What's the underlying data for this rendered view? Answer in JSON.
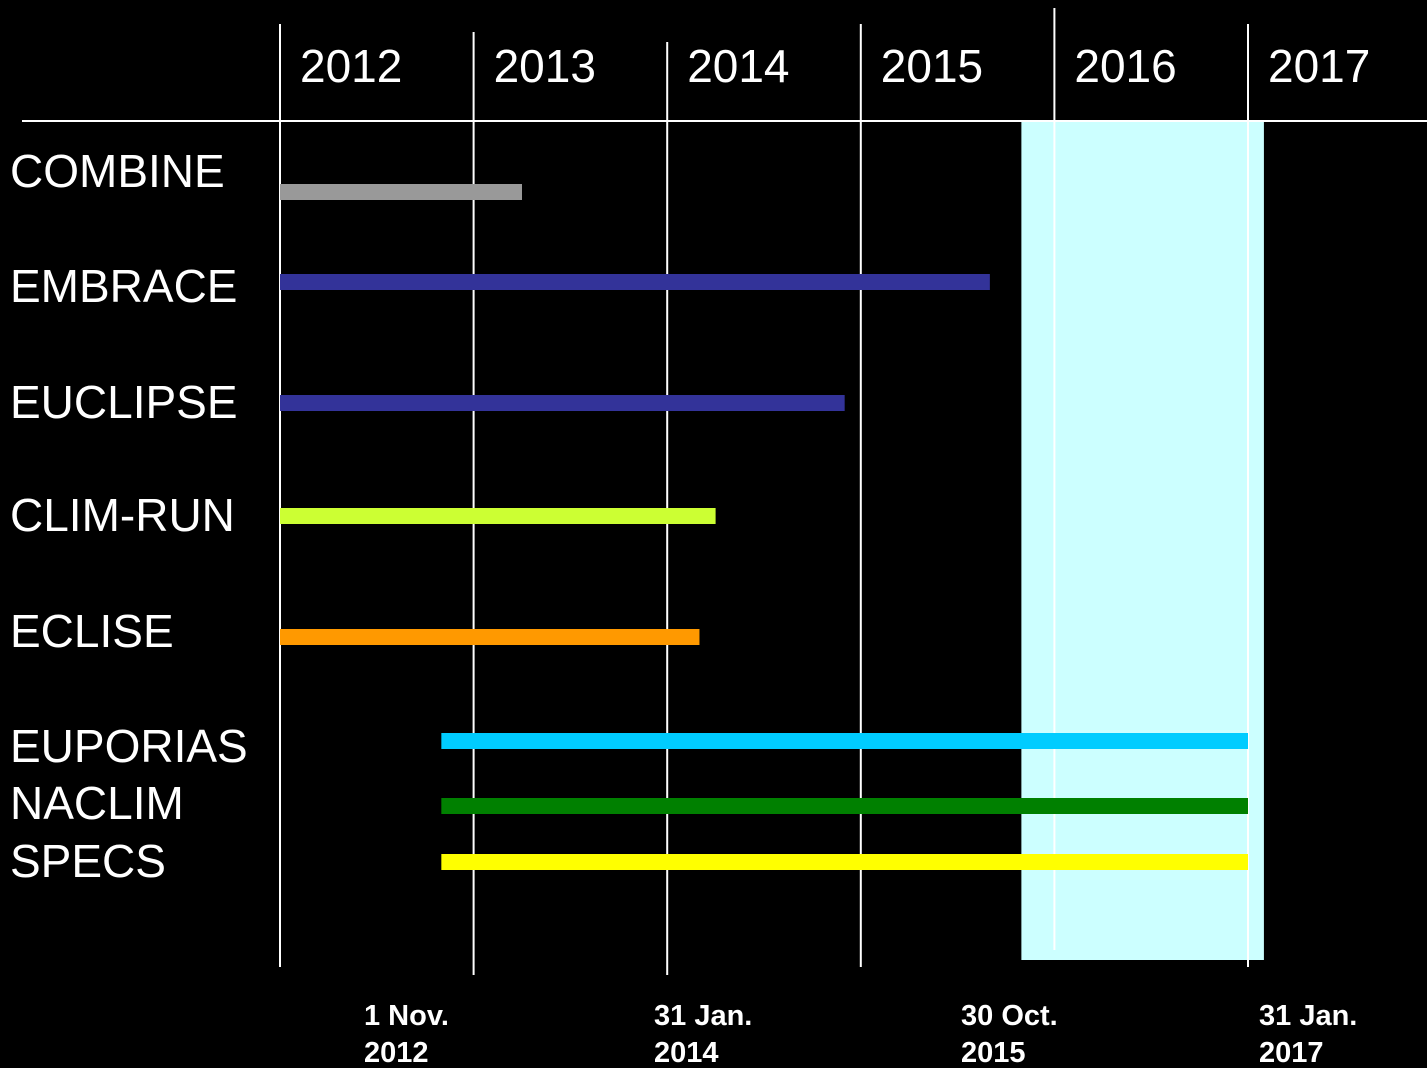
{
  "chart_data": {
    "type": "gantt",
    "year_labels": [
      "2012",
      "2013",
      "2014",
      "2015",
      "2016",
      "2017"
    ],
    "projects": [
      {
        "name": "COMBINE",
        "start": "2012-01",
        "end": "2013-04",
        "color": "#999999"
      },
      {
        "name": "EMBRACE",
        "start": "2012-01",
        "end": "2015-09",
        "color": "#333399"
      },
      {
        "name": "EUCLIPSE",
        "start": "2012-01",
        "end": "2014-12",
        "color": "#333399"
      },
      {
        "name": "CLIM-RUN",
        "start": "2012-01",
        "end": "2014-04",
        "color": "#ccff33"
      },
      {
        "name": "ECLISE",
        "start": "2012-01",
        "end": "2014-03",
        "color": "#ff9900"
      },
      {
        "name": "EUPORIAS",
        "start": "2012-11",
        "end": "2017-01",
        "color": "#00ccff"
      },
      {
        "name": "NACLIM",
        "start": "2012-11",
        "end": "2017-01",
        "color": "#008000"
      },
      {
        "name": "SPECS",
        "start": "2012-11",
        "end": "2017-01",
        "color": "#ffff00"
      }
    ],
    "highlight": {
      "start": "2015-10-30",
      "end": "2017-01-31",
      "color": "#ccffff"
    },
    "date_markers": [
      {
        "line1": "1 Nov.",
        "line2": "2012"
      },
      {
        "line1": "31 Jan.",
        "line2": "2014"
      },
      {
        "line1": "30 Oct.",
        "line2": "2015"
      },
      {
        "line1": "31 Jan.",
        "line2": "2017"
      }
    ],
    "background": "#000000",
    "gridline_color": "#ffffff"
  }
}
